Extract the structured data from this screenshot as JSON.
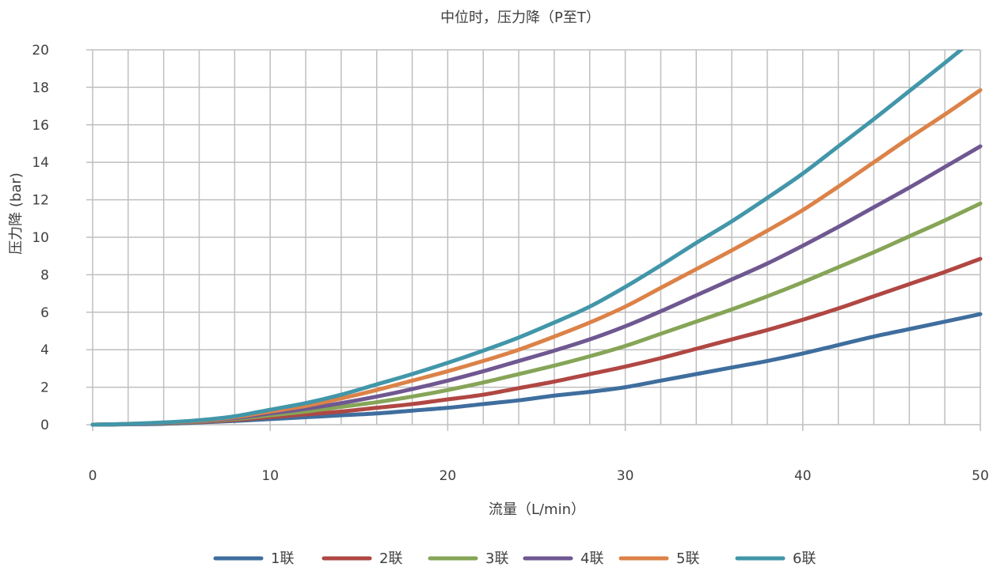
{
  "chart_data": {
    "type": "line",
    "title": "中位时，压力降（P至T）",
    "xlabel": "流量（L/min）",
    "ylabel": "压力降 (bar)",
    "xlim": [
      0,
      50
    ],
    "ylim": [
      0,
      20
    ],
    "xticks": [
      0,
      10,
      20,
      30,
      40,
      50
    ],
    "yticks": [
      0,
      2,
      4,
      6,
      8,
      10,
      12,
      14,
      16,
      18,
      20
    ],
    "x_minor_step": 2,
    "grid": true,
    "legend_position": "bottom",
    "x": [
      0,
      2,
      4,
      6,
      8,
      10,
      12,
      14,
      16,
      18,
      20,
      22,
      24,
      26,
      28,
      30,
      32,
      34,
      36,
      38,
      40,
      42,
      44,
      46,
      48,
      50
    ],
    "series": [
      {
        "name": "1联",
        "color": "#3F6E9E",
        "values": [
          0.0,
          0.02,
          0.05,
          0.12,
          0.2,
          0.3,
          0.4,
          0.5,
          0.6,
          0.75,
          0.9,
          1.1,
          1.3,
          1.55,
          1.75,
          2.0,
          2.35,
          2.7,
          3.05,
          3.4,
          3.8,
          4.25,
          4.7,
          5.1,
          5.5,
          5.9
        ]
      },
      {
        "name": "2联",
        "color": "#B04743",
        "values": [
          0.0,
          0.03,
          0.08,
          0.15,
          0.25,
          0.4,
          0.55,
          0.7,
          0.9,
          1.1,
          1.35,
          1.6,
          1.95,
          2.3,
          2.7,
          3.1,
          3.55,
          4.05,
          4.55,
          5.05,
          5.6,
          6.2,
          6.85,
          7.5,
          8.15,
          8.85
        ]
      },
      {
        "name": "3联",
        "color": "#86A557",
        "values": [
          0.0,
          0.03,
          0.09,
          0.17,
          0.3,
          0.5,
          0.7,
          0.95,
          1.2,
          1.5,
          1.85,
          2.25,
          2.7,
          3.15,
          3.65,
          4.2,
          4.85,
          5.5,
          6.15,
          6.85,
          7.6,
          8.4,
          9.2,
          10.05,
          10.9,
          11.8
        ]
      },
      {
        "name": "4联",
        "color": "#6F5891",
        "values": [
          0.0,
          0.03,
          0.1,
          0.19,
          0.35,
          0.6,
          0.85,
          1.15,
          1.5,
          1.9,
          2.35,
          2.85,
          3.4,
          3.95,
          4.55,
          5.25,
          6.05,
          6.9,
          7.75,
          8.6,
          9.55,
          10.55,
          11.6,
          12.65,
          13.75,
          14.85
        ]
      },
      {
        "name": "5联",
        "color": "#DC8248",
        "values": [
          0.0,
          0.04,
          0.11,
          0.21,
          0.4,
          0.7,
          1.0,
          1.4,
          1.85,
          2.35,
          2.85,
          3.4,
          4.0,
          4.7,
          5.45,
          6.3,
          7.3,
          8.3,
          9.3,
          10.35,
          11.45,
          12.7,
          14.0,
          15.3,
          16.55,
          17.85
        ]
      },
      {
        "name": "6联",
        "color": "#4296A9",
        "values": [
          0.0,
          0.04,
          0.12,
          0.24,
          0.45,
          0.8,
          1.15,
          1.6,
          2.15,
          2.7,
          3.3,
          3.95,
          4.65,
          5.45,
          6.3,
          7.35,
          8.5,
          9.7,
          10.85,
          12.1,
          13.4,
          14.85,
          16.3,
          17.8,
          19.3,
          20.85
        ]
      }
    ]
  }
}
